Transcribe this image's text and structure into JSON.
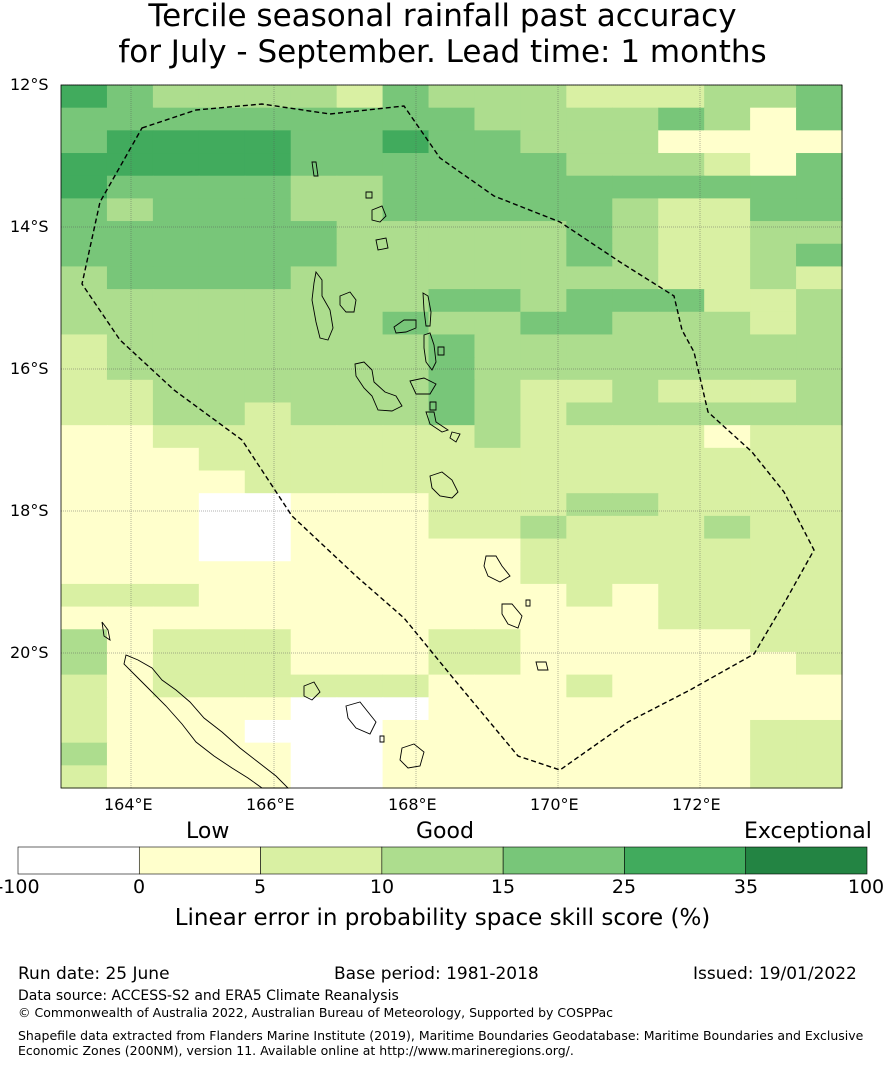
{
  "title": {
    "line1": "Tercile seasonal rainfall past accuracy",
    "line2": "for July - September. Lead time: 1 months"
  },
  "map": {
    "lat_labels": [
      "12°S",
      "14°S",
      "16°S",
      "18°S",
      "20°S"
    ],
    "lon_labels": [
      "164°E",
      "166°E",
      "168°E",
      "170°E",
      "172°E"
    ],
    "palette": [
      "#ffffff",
      "#ffffcc",
      "#d9f0a3",
      "#addd8e",
      "#78c679",
      "#41ab5d",
      "#238443"
    ],
    "skill_grid": [
      "54333324333222334",
      "44444444433334314",
      "45555445443331111",
      "55555444444333214",
      "54444334444444444",
      "43444334444432244",
      "44444433333432233",
      "44444433333432234",
      "34444333333332232",
      "33333333443444223",
      "33333334334433323",
      "23333333433333333",
      "23333333433333333",
      "22333333432232223",
      "22332333432333333",
      "11222222232222122",
      "11122222222222222",
      "11112222222222222",
      "11100111222332222",
      "11100111223222322",
      "11100111112222222",
      "11111111112222222",
      "22211111111212222",
      "11111111111112222",
      "31222111221111122",
      "31222111221111112",
      "21222222111211111",
      "21111000111111111",
      "21110001111111122",
      "31111001111111122",
      "21111001111111122"
    ]
  },
  "colorbar": {
    "category_labels": [
      "Low",
      "Good",
      "Exceptional"
    ],
    "ticks": [
      "-100",
      "0",
      "5",
      "10",
      "15",
      "25",
      "35",
      "100"
    ],
    "colors": [
      "#ffffff",
      "#ffffcc",
      "#d9f0a3",
      "#addd8e",
      "#78c679",
      "#41ab5d",
      "#238443"
    ],
    "title": "Linear error in probability space skill score (%)"
  },
  "footer": {
    "run_date": "Run date: 25 June",
    "base_period": "Base period: 1981-2018",
    "issued": "Issued: 19/01/2022",
    "data_source": "Data source: ACCESS-S2 and ERA5 Climate Reanalysis",
    "copyright": "© Commonwealth of Australia 2022, Australian Bureau of Meteorology, Supported by COSPPac",
    "shapefile_line1": "Shapefile data extracted from Flanders Marine Institute (2019), Maritime Boundaries Geodatabase: Maritime Boundaries and Exclusive",
    "shapefile_line2": "Economic Zones (200NM), version 11. Available online at http://www.marineregions.org/."
  }
}
